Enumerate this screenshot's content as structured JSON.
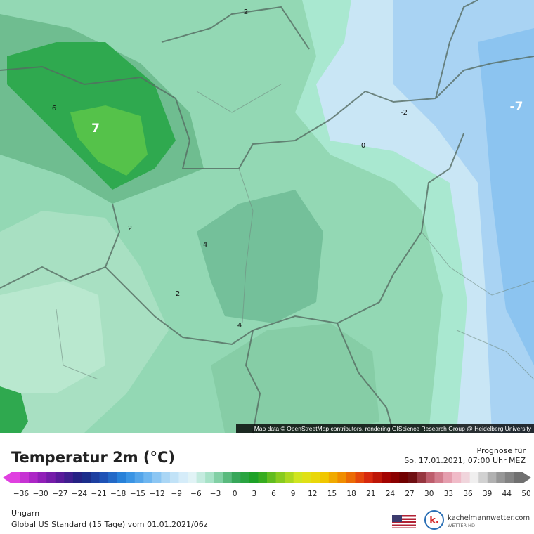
{
  "map": {
    "labels": [
      "2",
      "6",
      "7",
      "2",
      "4",
      "2",
      "4",
      "-2",
      "0",
      "-7"
    ],
    "attribution": "Map data © OpenStreetMap contributors, rendering GIScience Research Group @ Heidelberg University"
  },
  "header": {
    "title": "Temperatur 2m (°C)",
    "forecast_label": "Prognose für",
    "forecast_time": "So. 17.01.2021, 07:00 Uhr MEZ"
  },
  "legend": {
    "ticks": [
      "−36",
      "−30",
      "−27",
      "−24",
      "−21",
      "−18",
      "−15",
      "−12",
      "−9",
      "−6",
      "−3",
      "0",
      "3",
      "6",
      "9",
      "12",
      "15",
      "18",
      "21",
      "24",
      "27",
      "30",
      "33",
      "36",
      "39",
      "44",
      "50"
    ]
  },
  "footer": {
    "region": "Ungarn",
    "model": "Global US Standard (15 Tage) vom  01.01.2021/06z",
    "logo_letter": "k.",
    "logo_site": "kachelmannwetter.com",
    "logo_sub": "WETTER HD"
  }
}
